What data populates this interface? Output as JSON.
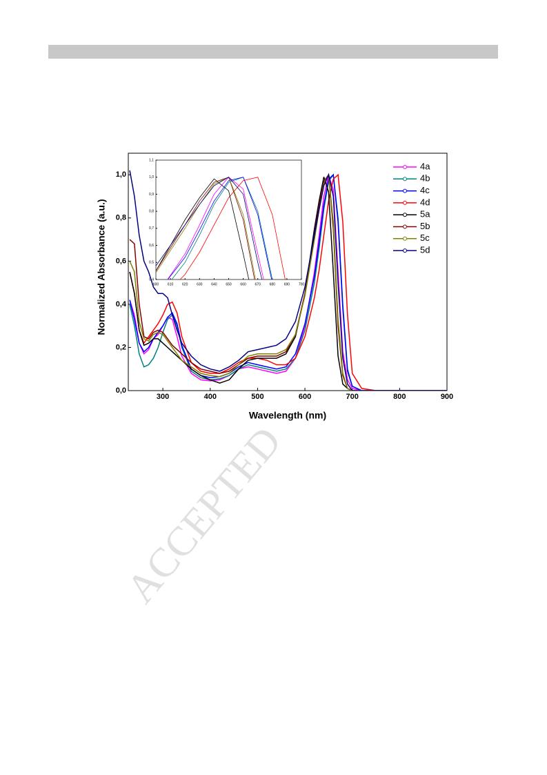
{
  "header": {
    "watermark": "ACCEPTED"
  },
  "chart_data": {
    "type": "line",
    "x_label": "Wavelength (nm)",
    "y_label": "Normalized Absorbance (a.u.)",
    "xlim": [
      227,
      900
    ],
    "ylim": [
      0,
      1.1
    ],
    "xticks": [
      300,
      400,
      500,
      600,
      700,
      800,
      900
    ],
    "yticks": [
      {
        "value": 0,
        "label": "0,0"
      },
      {
        "value": 0.2,
        "label": "0,2"
      },
      {
        "value": 0.4,
        "label": "0,4"
      },
      {
        "value": 0.6,
        "label": "0,6"
      },
      {
        "value": 0.8,
        "label": "0,8"
      },
      {
        "value": 1.0,
        "label": "1,0"
      }
    ],
    "legend": "top-right",
    "x": [
      230,
      240,
      250,
      260,
      270,
      280,
      290,
      300,
      310,
      320,
      330,
      340,
      360,
      380,
      400,
      420,
      440,
      460,
      480,
      500,
      520,
      540,
      560,
      580,
      600,
      620,
      630,
      640,
      650,
      660,
      670,
      680,
      690,
      700,
      720,
      750,
      800,
      900
    ],
    "series": [
      {
        "name": "4a",
        "color": "#ff00ff",
        "values": [
          0.42,
          0.35,
          0.22,
          0.17,
          0.19,
          0.24,
          0.26,
          0.3,
          0.34,
          0.33,
          0.25,
          0.16,
          0.08,
          0.05,
          0.045,
          0.05,
          0.07,
          0.1,
          0.11,
          0.1,
          0.09,
          0.08,
          0.09,
          0.15,
          0.3,
          0.55,
          0.72,
          0.9,
          1.0,
          0.93,
          0.55,
          0.18,
          0.05,
          0.01,
          0,
          0,
          0,
          0
        ]
      },
      {
        "name": "4b",
        "color": "#008080",
        "values": [
          0.4,
          0.3,
          0.17,
          0.11,
          0.12,
          0.15,
          0.2,
          0.27,
          0.33,
          0.35,
          0.3,
          0.2,
          0.09,
          0.06,
          0.05,
          0.055,
          0.07,
          0.1,
          0.12,
          0.11,
          0.1,
          0.09,
          0.1,
          0.15,
          0.28,
          0.5,
          0.66,
          0.84,
          0.97,
          1.0,
          0.8,
          0.4,
          0.1,
          0.02,
          0,
          0,
          0,
          0
        ]
      },
      {
        "name": "4c",
        "color": "#0000ff",
        "values": [
          0.42,
          0.33,
          0.22,
          0.18,
          0.2,
          0.24,
          0.27,
          0.3,
          0.34,
          0.36,
          0.31,
          0.21,
          0.1,
          0.07,
          0.06,
          0.065,
          0.08,
          0.11,
          0.13,
          0.12,
          0.11,
          0.1,
          0.11,
          0.17,
          0.31,
          0.53,
          0.69,
          0.86,
          0.98,
          1.0,
          0.78,
          0.38,
          0.09,
          0.02,
          0,
          0,
          0,
          0
        ]
      },
      {
        "name": "4d",
        "color": "#ff0000",
        "values": [
          0.55,
          0.45,
          0.28,
          0.22,
          0.25,
          0.28,
          0.31,
          0.35,
          0.4,
          0.41,
          0.36,
          0.25,
          0.13,
          0.09,
          0.08,
          0.08,
          0.1,
          0.13,
          0.15,
          0.15,
          0.14,
          0.12,
          0.12,
          0.15,
          0.25,
          0.43,
          0.56,
          0.72,
          0.88,
          0.98,
          1.0,
          0.78,
          0.35,
          0.08,
          0.01,
          0,
          0,
          0
        ]
      },
      {
        "name": "5a",
        "color": "#000000",
        "values": [
          0.55,
          0.45,
          0.28,
          0.21,
          0.22,
          0.24,
          0.24,
          0.22,
          0.2,
          0.18,
          0.16,
          0.14,
          0.1,
          0.07,
          0.05,
          0.035,
          0.05,
          0.1,
          0.14,
          0.15,
          0.15,
          0.15,
          0.17,
          0.25,
          0.45,
          0.75,
          0.88,
          0.99,
          0.92,
          0.55,
          0.16,
          0.03,
          0.01,
          0,
          0,
          0,
          0,
          0
        ]
      },
      {
        "name": "5b",
        "color": "#800000",
        "values": [
          0.7,
          0.68,
          0.4,
          0.25,
          0.24,
          0.27,
          0.28,
          0.27,
          0.24,
          0.21,
          0.19,
          0.17,
          0.13,
          0.1,
          0.09,
          0.08,
          0.09,
          0.12,
          0.15,
          0.16,
          0.16,
          0.16,
          0.18,
          0.26,
          0.45,
          0.72,
          0.86,
          0.97,
          1.0,
          0.75,
          0.3,
          0.07,
          0.01,
          0,
          0,
          0,
          0,
          0
        ]
      },
      {
        "name": "5c",
        "color": "#808000",
        "values": [
          0.6,
          0.55,
          0.32,
          0.24,
          0.23,
          0.26,
          0.27,
          0.26,
          0.23,
          0.2,
          0.17,
          0.14,
          0.11,
          0.08,
          0.07,
          0.065,
          0.08,
          0.12,
          0.16,
          0.17,
          0.17,
          0.17,
          0.19,
          0.26,
          0.44,
          0.7,
          0.84,
          0.96,
          1.0,
          0.78,
          0.33,
          0.08,
          0.01,
          0,
          0,
          0,
          0,
          0
        ]
      },
      {
        "name": "5d",
        "color": "#000080",
        "values": [
          1.02,
          0.9,
          0.72,
          0.6,
          0.55,
          0.48,
          0.45,
          0.45,
          0.43,
          0.35,
          0.28,
          0.22,
          0.16,
          0.12,
          0.1,
          0.09,
          0.11,
          0.14,
          0.18,
          0.19,
          0.2,
          0.21,
          0.24,
          0.32,
          0.48,
          0.72,
          0.84,
          0.95,
          1.0,
          0.9,
          0.5,
          0.15,
          0.03,
          0,
          0,
          0,
          0,
          0
        ]
      }
    ],
    "inset": {
      "xlim": [
        600,
        700
      ],
      "ylim": [
        0.4,
        1.1
      ],
      "xticks": [
        600,
        610,
        620,
        630,
        640,
        650,
        660,
        670,
        680,
        690,
        700
      ],
      "yticks": [
        {
          "value": 0.4,
          "label": "0,4"
        },
        {
          "value": 0.5,
          "label": "0,5"
        },
        {
          "value": 0.6,
          "label": "0,6"
        },
        {
          "value": 0.7,
          "label": "0,7"
        },
        {
          "value": 0.8,
          "label": "0,8"
        },
        {
          "value": 0.9,
          "label": "0,9"
        },
        {
          "value": 1.0,
          "label": "1,0"
        },
        {
          "value": 1.1,
          "label": "1,1"
        }
      ]
    }
  }
}
